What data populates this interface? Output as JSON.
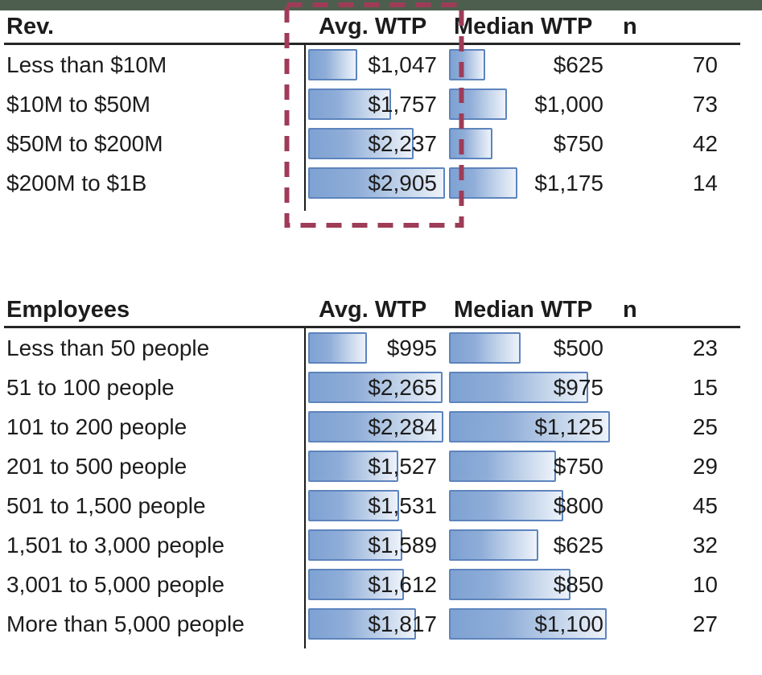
{
  "top_band": {
    "color": "#4d5e4e"
  },
  "highlight_box": {
    "color": "#9e3c58",
    "style": "dashed",
    "highlights": "Avg. WTP column of Rev. table"
  },
  "bar_style": {
    "border": "#5d84bd",
    "fill_left": "#7ea2d3",
    "fill_right": "#edf2fa"
  },
  "chart_data": [
    {
      "type": "table",
      "title": "Rev.",
      "columns": [
        "Rev.",
        "Avg. WTP",
        "Median WTP",
        "n"
      ],
      "bars": "horizontal gradient data bars proportional to value",
      "rows": [
        {
          "label": "Less than $10M",
          "avg_wtp": 1047,
          "avg_wtp_display": "$1,047",
          "median_wtp": 625,
          "median_wtp_display": "$625",
          "n": 70
        },
        {
          "label": "$10M to $50M",
          "avg_wtp": 1757,
          "avg_wtp_display": "$1,757",
          "median_wtp": 1000,
          "median_wtp_display": "$1,000",
          "n": 73
        },
        {
          "label": "$50M to $200M",
          "avg_wtp": 2237,
          "avg_wtp_display": "$2,237",
          "median_wtp": 750,
          "median_wtp_display": "$750",
          "n": 42
        },
        {
          "label": "$200M to $1B",
          "avg_wtp": 2905,
          "avg_wtp_display": "$2,905",
          "median_wtp": 1175,
          "median_wtp_display": "$1,175",
          "n": 14
        }
      ]
    },
    {
      "type": "table",
      "title": "Employees",
      "columns": [
        "Employees",
        "Avg. WTP",
        "Median WTP",
        "n"
      ],
      "bars": "horizontal gradient data bars proportional to value",
      "rows": [
        {
          "label": "Less than 50 people",
          "avg_wtp": 995,
          "avg_wtp_display": "$995",
          "median_wtp": 500,
          "median_wtp_display": "$500",
          "n": 23
        },
        {
          "label": "51 to 100 people",
          "avg_wtp": 2265,
          "avg_wtp_display": "$2,265",
          "median_wtp": 975,
          "median_wtp_display": "$975",
          "n": 15
        },
        {
          "label": "101 to 200 people",
          "avg_wtp": 2284,
          "avg_wtp_display": "$2,284",
          "median_wtp": 1125,
          "median_wtp_display": "$1,125",
          "n": 25
        },
        {
          "label": "201 to 500 people",
          "avg_wtp": 1527,
          "avg_wtp_display": "$1,527",
          "median_wtp": 750,
          "median_wtp_display": "$750",
          "n": 29
        },
        {
          "label": "501 to 1,500 people",
          "avg_wtp": 1531,
          "avg_wtp_display": "$1,531",
          "median_wtp": 800,
          "median_wtp_display": "$800",
          "n": 45
        },
        {
          "label": "1,501 to 3,000 people",
          "avg_wtp": 1589,
          "avg_wtp_display": "$1,589",
          "median_wtp": 625,
          "median_wtp_display": "$625",
          "n": 32
        },
        {
          "label": "3,001 to 5,000 people",
          "avg_wtp": 1612,
          "avg_wtp_display": "$1,612",
          "median_wtp": 850,
          "median_wtp_display": "$850",
          "n": 10
        },
        {
          "label": "More than 5,000 people",
          "avg_wtp": 1817,
          "avg_wtp_display": "$1,817",
          "median_wtp": 1100,
          "median_wtp_display": "$1,100",
          "n": 27
        }
      ]
    }
  ]
}
